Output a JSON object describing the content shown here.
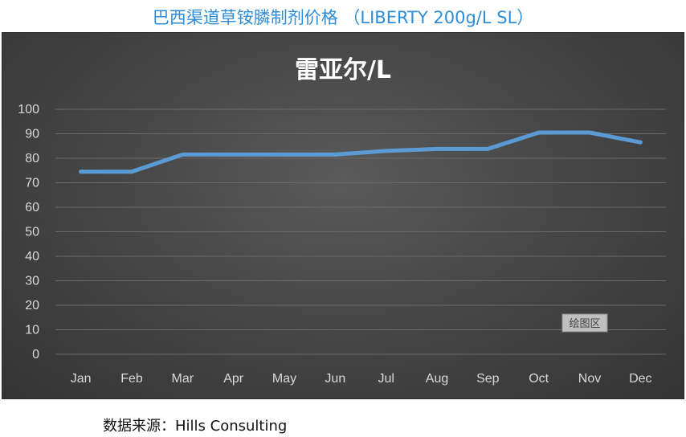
{
  "document": {
    "title": "巴西渠道草铵膦制剂价格 （LIBERTY 200g/L SL）",
    "source": "数据来源：Hills Consulting"
  },
  "plot_area_tag": "绘图区",
  "colors": {
    "line": "#5b9bd5",
    "grid": "#6a6a6a",
    "background": "#444444"
  },
  "chart_data": {
    "type": "line",
    "title": "雷亚尔/L",
    "categories": [
      "Jan",
      "Feb",
      "Mar",
      "Apr",
      "May",
      "Jun",
      "Jul",
      "Aug",
      "Sep",
      "Oct",
      "Nov",
      "Dec"
    ],
    "series": [
      {
        "values": [
          74.5,
          74.5,
          81.5,
          81.5,
          81.5,
          81.5,
          83,
          83.8,
          83.8,
          90.5,
          90.5,
          86.5
        ]
      }
    ],
    "yticks": [
      0,
      10,
      20,
      30,
      40,
      50,
      60,
      70,
      80,
      90,
      100
    ],
    "ylim": [
      0,
      100
    ],
    "grid": true,
    "legend": "none"
  }
}
